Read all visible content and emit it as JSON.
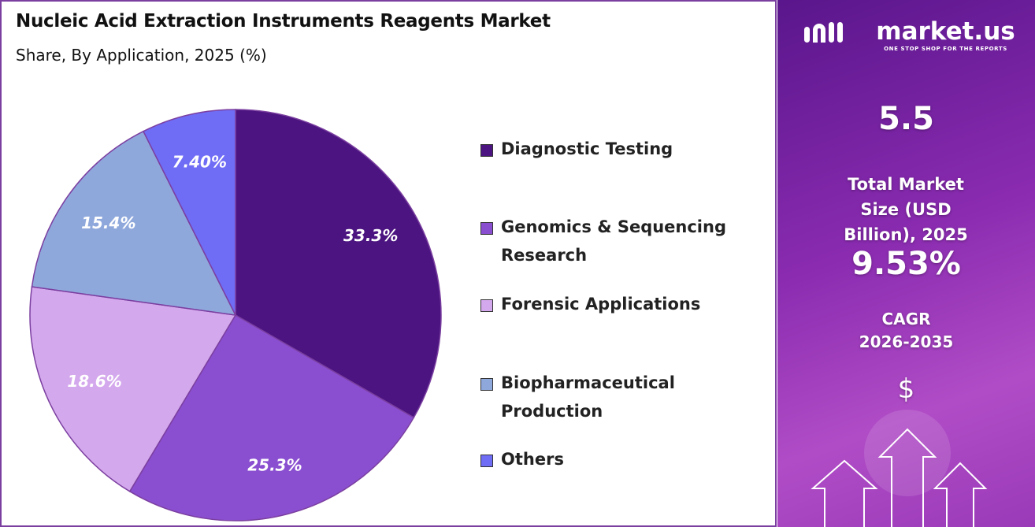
{
  "chart_data": {
    "type": "pie",
    "title": "Nucleic Acid Extraction Instruments Reagents Market",
    "subtitle": "Share, By Application, 2025 (%)",
    "categories": [
      "Diagnostic Testing",
      "Genomics & Sequencing Research",
      "Forensic Applications",
      "Biopharmaceutical Production",
      "Others"
    ],
    "values": [
      33.3,
      25.3,
      18.6,
      15.4,
      7.4
    ],
    "value_labels": [
      "33.3%",
      "25.3%",
      "18.6%",
      "15.4%",
      "7.40%"
    ],
    "colors": [
      "#4b1480",
      "#8a4fd0",
      "#d4a8ec",
      "#8fa8dc",
      "#6f6cf5"
    ],
    "legend": "right"
  },
  "panel": {
    "brand": "market.us",
    "tagline": "ONE STOP SHOP FOR THE REPORTS",
    "market_size": "5.5",
    "market_size_label": "Total Market Size (USD Billion), 2025",
    "cagr": "9.53%",
    "cagr_label": "CAGR",
    "cagr_period": "2026-2035",
    "currency_icon": "$"
  }
}
